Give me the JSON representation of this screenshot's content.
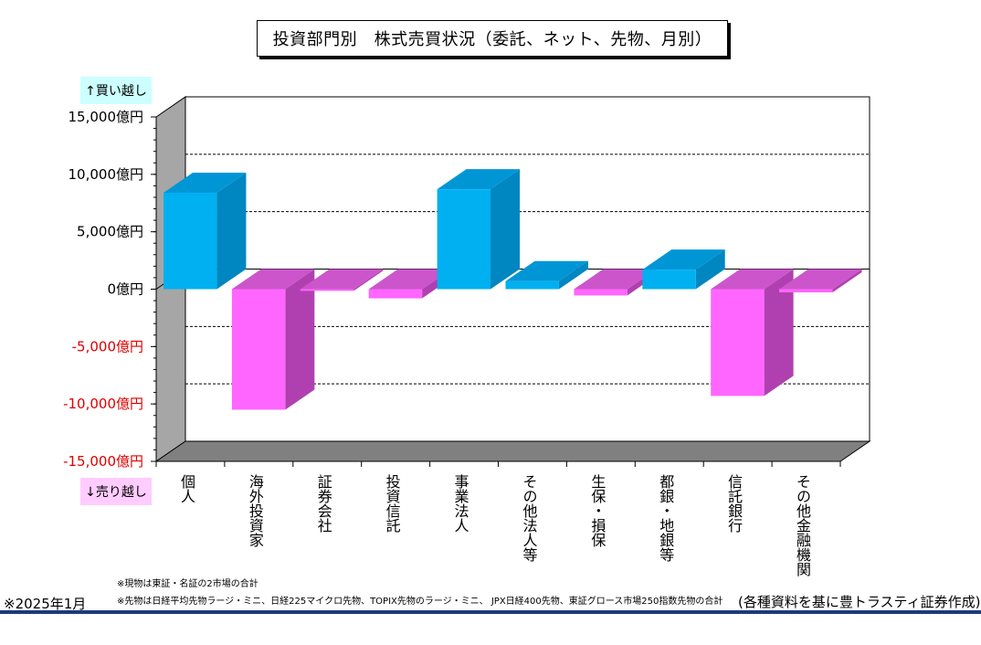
{
  "title": "投資部門別　株式売買状況（委託、ネット、先物、月別）",
  "buy_label": "↑買い越し",
  "sell_label": "↓売り越し",
  "notes": [
    "※現物は東証・名証の2市場の合計",
    "※先物は日経平均先物ラージ・ミニ、日経225マイクロ先物、TOPIX先物のラージ・ミニ、 JPX日経400先物、東証グロース市場250指数先物の合計"
  ],
  "date": "※2025年1月",
  "credit": "(各種資料を基に豊トラスティ証券作成)",
  "colors": {
    "positive_front": "#00b0f0",
    "positive_side": "#0086c0",
    "positive_top": "#0096d6",
    "negative_front": "#ff66ff",
    "negative_side": "#b040b0",
    "negative_top": "#cc55cc",
    "back_wall": "#ffffff",
    "side_wall": "#a6a6a6",
    "floor": "#808080",
    "negative_tick_text": "#e00000"
  },
  "chart_data": {
    "type": "bar",
    "categories": [
      "個人",
      "海外投資家",
      "証券会社",
      "投資信託",
      "事業法人",
      "その他法人等",
      "生保・損保",
      "都銀・地銀等",
      "信託銀行",
      "その他金融機関"
    ],
    "values": [
      8400,
      -10500,
      -150,
      -800,
      8700,
      700,
      -550,
      1700,
      -9300,
      -280
    ],
    "ylim": [
      -15000,
      15000
    ],
    "yticks": [
      15000,
      10000,
      5000,
      0,
      -5000,
      -10000,
      -15000
    ],
    "ytick_labels": [
      "15,000億円",
      "10,000億円",
      "5,000億円",
      "0億円",
      "-5,000億円",
      "-10,000億円",
      "-15,000億円"
    ],
    "grid": true
  }
}
